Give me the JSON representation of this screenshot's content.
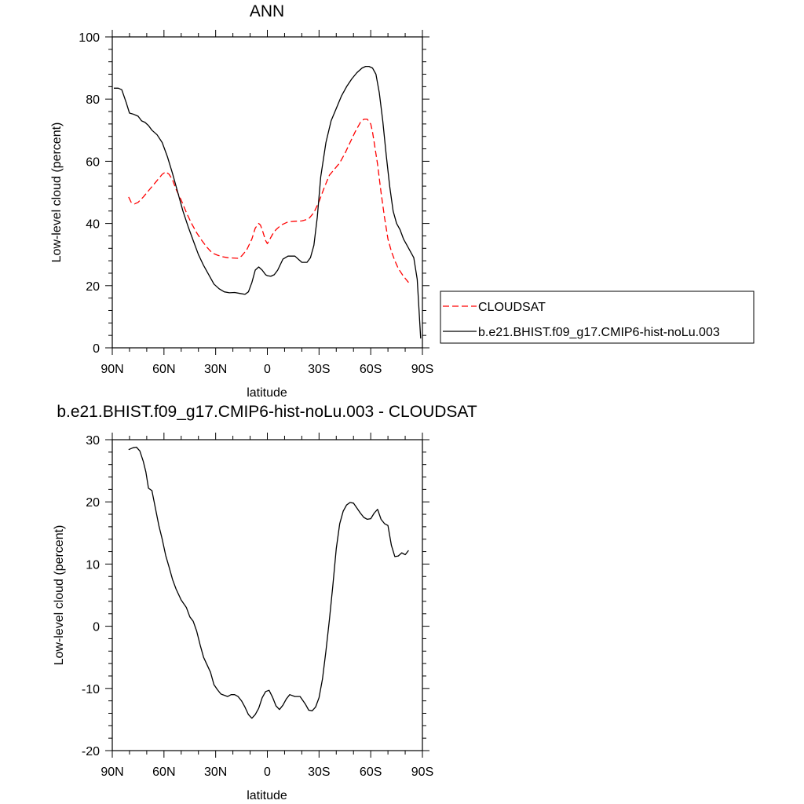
{
  "chart_data": [
    {
      "type": "line",
      "title": "ANN",
      "xlabel": "latitude",
      "ylabel": "Low-level cloud (percent)",
      "x_range": [
        90,
        -90
      ],
      "ylim": [
        0,
        100
      ],
      "x_ticks": [
        {
          "value": 90,
          "label": "90N"
        },
        {
          "value": 60,
          "label": "60N"
        },
        {
          "value": 30,
          "label": "30N"
        },
        {
          "value": 0,
          "label": "0"
        },
        {
          "value": -30,
          "label": "30S"
        },
        {
          "value": -60,
          "label": "60S"
        },
        {
          "value": -90,
          "label": "90S"
        }
      ],
      "y_ticks": [
        {
          "value": 0,
          "label": "0"
        },
        {
          "value": 20,
          "label": "20"
        },
        {
          "value": 40,
          "label": "40"
        },
        {
          "value": 60,
          "label": "60"
        },
        {
          "value": 80,
          "label": "80"
        },
        {
          "value": 100,
          "label": "100"
        }
      ],
      "grid": false,
      "legend": {
        "placement": "right"
      },
      "series": [
        {
          "name": "CLOUDSAT",
          "color": "#ff0000",
          "dashed": true,
          "x": [
            80.5,
            79,
            77,
            75,
            72,
            69,
            66,
            63,
            61,
            59,
            57,
            55,
            53,
            50,
            47,
            44,
            41,
            38,
            35,
            32,
            29,
            26,
            23,
            20,
            17,
            15,
            12,
            9,
            7,
            5,
            4,
            3,
            1,
            0,
            -1,
            -3,
            -5,
            -8,
            -12,
            -16,
            -20,
            -24,
            -27,
            -30,
            -33,
            -36,
            -39,
            -42,
            -45,
            -48,
            -51,
            -54,
            -56,
            -58,
            -60,
            -61,
            -62,
            -64,
            -66,
            -68,
            -70,
            -72,
            -74,
            -76,
            -79,
            -82
          ],
          "y": [
            48.5,
            46.8,
            46.3,
            46.8,
            48.5,
            50.5,
            52.5,
            54.5,
            55.8,
            56.6,
            55.8,
            54,
            51,
            47.5,
            43.5,
            40,
            37,
            34.5,
            32.3,
            30.5,
            29.8,
            29.3,
            29,
            28.9,
            28.8,
            29.5,
            31.5,
            35,
            38.5,
            40,
            39.5,
            38,
            34.5,
            33.5,
            34.5,
            36.5,
            38,
            39.5,
            40.5,
            40.7,
            40.8,
            41.5,
            43.5,
            47,
            51.5,
            55.5,
            57.5,
            59.5,
            62.5,
            66,
            69.5,
            72.5,
            73.5,
            73.5,
            72,
            69.5,
            66,
            59,
            50,
            42,
            35,
            31,
            28,
            25.5,
            23,
            21
          ]
        },
        {
          "name": "b.e21.BHIST.f09_g17.CMIP6-hist-noLu.003",
          "color": "#000000",
          "dashed": false,
          "x": [
            89.1,
            86.5,
            84.5,
            82,
            80,
            78,
            75,
            73,
            71,
            69,
            67,
            64,
            61,
            58,
            55,
            52,
            49,
            46,
            43,
            40,
            37,
            34,
            31,
            28,
            25,
            22,
            19,
            16,
            13,
            11,
            9,
            7,
            5,
            3,
            1,
            0,
            -2,
            -4,
            -6,
            -9,
            -12,
            -16,
            -20,
            -23,
            -25,
            -27,
            -29,
            -31,
            -34,
            -37,
            -40,
            -43,
            -46,
            -49,
            -52,
            -55,
            -57,
            -59,
            -61,
            -63,
            -65,
            -67,
            -69,
            -71,
            -73,
            -75,
            -77,
            -79,
            -81,
            -83,
            -85,
            -87,
            -89
          ],
          "y": [
            83.5,
            83.5,
            83,
            79,
            75.5,
            75.2,
            74.5,
            73,
            72.5,
            71.5,
            70,
            68.5,
            66,
            61.5,
            56,
            50,
            44,
            39,
            34.5,
            30,
            26.5,
            23.5,
            20.5,
            19,
            18,
            17.7,
            17.8,
            17.5,
            17.2,
            18,
            21,
            25,
            26,
            25,
            23.5,
            23.2,
            23,
            23.5,
            25,
            28.5,
            29.5,
            29.5,
            27.5,
            27.5,
            29,
            33,
            42,
            55,
            66,
            73,
            77,
            81,
            84,
            86.5,
            88.5,
            90,
            90.5,
            90.5,
            90,
            88,
            82,
            73,
            62,
            52,
            44,
            40,
            38,
            35,
            33,
            31,
            29,
            22,
            3
          ]
        }
      ]
    },
    {
      "type": "line",
      "title": "b.e21.BHIST.f09_g17.CMIP6-hist-noLu.003 - CLOUDSAT",
      "xlabel": "latitude",
      "ylabel": "Low-level cloud (percent)",
      "x_range": [
        90,
        -90
      ],
      "ylim": [
        -20,
        30
      ],
      "x_ticks": [
        {
          "value": 90,
          "label": "90N"
        },
        {
          "value": 60,
          "label": "60N"
        },
        {
          "value": 30,
          "label": "30N"
        },
        {
          "value": 0,
          "label": "0"
        },
        {
          "value": -30,
          "label": "30S"
        },
        {
          "value": -60,
          "label": "60S"
        },
        {
          "value": -90,
          "label": "90S"
        }
      ],
      "y_ticks": [
        {
          "value": -20,
          "label": "-20"
        },
        {
          "value": -10,
          "label": "-10"
        },
        {
          "value": 0,
          "label": "0"
        },
        {
          "value": 10,
          "label": "10"
        },
        {
          "value": 20,
          "label": "20"
        },
        {
          "value": 30,
          "label": "30"
        }
      ],
      "grid": false,
      "series": [
        {
          "color": "#000000",
          "dashed": false,
          "x": [
            80.5,
            78,
            76,
            74,
            72,
            70.5,
            69,
            67,
            65,
            63,
            61,
            59,
            57,
            55,
            53,
            50,
            47,
            45,
            43,
            41,
            39,
            37,
            35,
            33,
            31,
            29,
            27,
            25,
            23,
            21,
            19,
            17,
            15,
            13,
            11,
            9,
            7,
            5,
            3,
            1,
            -1,
            -3,
            -5,
            -7,
            -9,
            -11,
            -13,
            -16,
            -19,
            -22,
            -24,
            -26,
            -28,
            -30,
            -32,
            -34,
            -36,
            -38,
            -40,
            -42,
            -44,
            -46,
            -48,
            -50,
            -52,
            -54,
            -56,
            -58,
            -60,
            -62,
            -64,
            -66,
            -68,
            -70,
            -72,
            -74,
            -76,
            -78,
            -80,
            -82
          ],
          "y": [
            28.4,
            28.7,
            28.8,
            28.2,
            26.5,
            24.8,
            22.2,
            21.8,
            19,
            16.2,
            14,
            11.4,
            9.5,
            7.5,
            6,
            4.2,
            3,
            1.5,
            0.8,
            -0.8,
            -3,
            -5,
            -6.2,
            -7.4,
            -9.4,
            -10.2,
            -10.9,
            -11.1,
            -11.3,
            -11,
            -11,
            -11.3,
            -12,
            -13,
            -14.2,
            -14.8,
            -14.2,
            -13.2,
            -11.5,
            -10.5,
            -10.3,
            -11.4,
            -12.8,
            -13.4,
            -12.7,
            -11.7,
            -11,
            -11.3,
            -11.3,
            -12.5,
            -13.5,
            -13.6,
            -13,
            -11.5,
            -8.5,
            -4,
            1,
            6.5,
            12.5,
            16.5,
            18.5,
            19.5,
            19.9,
            19.8,
            19,
            18.2,
            17.5,
            17.2,
            17.3,
            18.2,
            18.8,
            17.2,
            16.5,
            16.2,
            13,
            11.2,
            11.3,
            11.8,
            11.5,
            12.2
          ]
        }
      ]
    }
  ]
}
